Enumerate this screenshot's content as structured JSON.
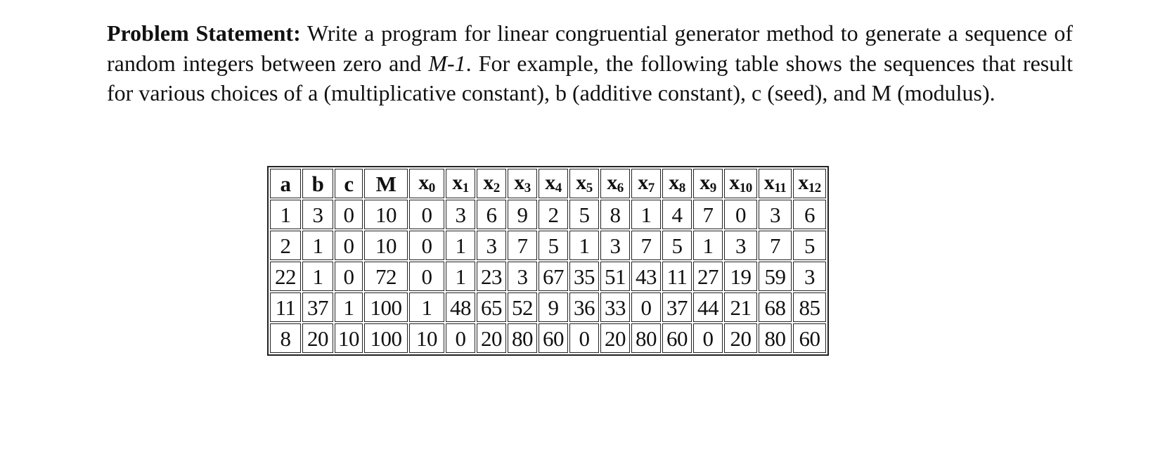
{
  "statement": {
    "lead": "Problem Statement:",
    "part1": " Write a program for linear congruential generator method to generate a sequence of random integers between zero and ",
    "modulus_expr": "M-1",
    "part2": ". For example, the following table shows the sequences that result for various choices of a (multiplicative constant), b (additive constant), c (seed), and M (modulus)."
  },
  "table": {
    "headers": [
      {
        "base": "a",
        "sub": ""
      },
      {
        "base": "b",
        "sub": ""
      },
      {
        "base": "c",
        "sub": ""
      },
      {
        "base": "M",
        "sub": ""
      },
      {
        "base": "x",
        "sub": "0"
      },
      {
        "base": "x",
        "sub": "1"
      },
      {
        "base": "x",
        "sub": "2"
      },
      {
        "base": "x",
        "sub": "3"
      },
      {
        "base": "x",
        "sub": "4"
      },
      {
        "base": "x",
        "sub": "5"
      },
      {
        "base": "x",
        "sub": "6"
      },
      {
        "base": "x",
        "sub": "7"
      },
      {
        "base": "x",
        "sub": "8"
      },
      {
        "base": "x",
        "sub": "9"
      },
      {
        "base": "x",
        "sub": "10"
      },
      {
        "base": "x",
        "sub": "11"
      },
      {
        "base": "x",
        "sub": "12"
      }
    ],
    "rows": [
      [
        "1",
        "3",
        "0",
        "10",
        "0",
        "3",
        "6",
        "9",
        "2",
        "5",
        "8",
        "1",
        "4",
        "7",
        "0",
        "3",
        "6"
      ],
      [
        "2",
        "1",
        "0",
        "10",
        "0",
        "1",
        "3",
        "7",
        "5",
        "1",
        "3",
        "7",
        "5",
        "1",
        "3",
        "7",
        "5"
      ],
      [
        "22",
        "1",
        "0",
        "72",
        "0",
        "1",
        "23",
        "3",
        "67",
        "35",
        "51",
        "43",
        "11",
        "27",
        "19",
        "59",
        "3"
      ],
      [
        "11",
        "37",
        "1",
        "100",
        "1",
        "48",
        "65",
        "52",
        "9",
        "36",
        "33",
        "0",
        "37",
        "44",
        "21",
        "68",
        "85"
      ],
      [
        "8",
        "20",
        "10",
        "100",
        "10",
        "0",
        "20",
        "80",
        "60",
        "0",
        "20",
        "80",
        "60",
        "0",
        "20",
        "80",
        "60"
      ]
    ]
  }
}
